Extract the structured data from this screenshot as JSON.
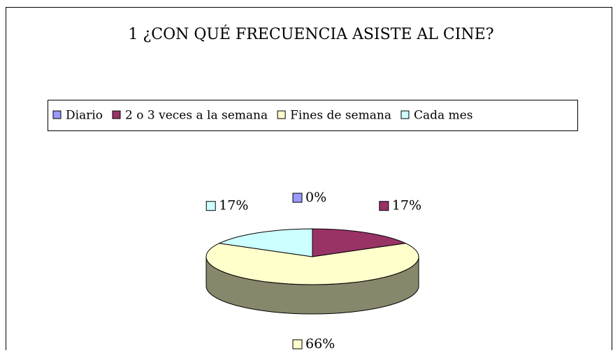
{
  "chart_data": {
    "type": "pie",
    "title": "1 ¿CON QUÉ FRECUENCIA ASISTE AL CINE?",
    "categories": [
      "Diario",
      "2 o 3 veces a la semana",
      "Fines de semana",
      "Cada mes"
    ],
    "values": [
      0,
      17,
      66,
      17
    ],
    "value_labels": [
      "0%",
      "17%",
      "66%",
      "17%"
    ],
    "colors": [
      "#9999ff",
      "#993366",
      "#ffffcc",
      "#ccffff"
    ],
    "legend": "top"
  }
}
